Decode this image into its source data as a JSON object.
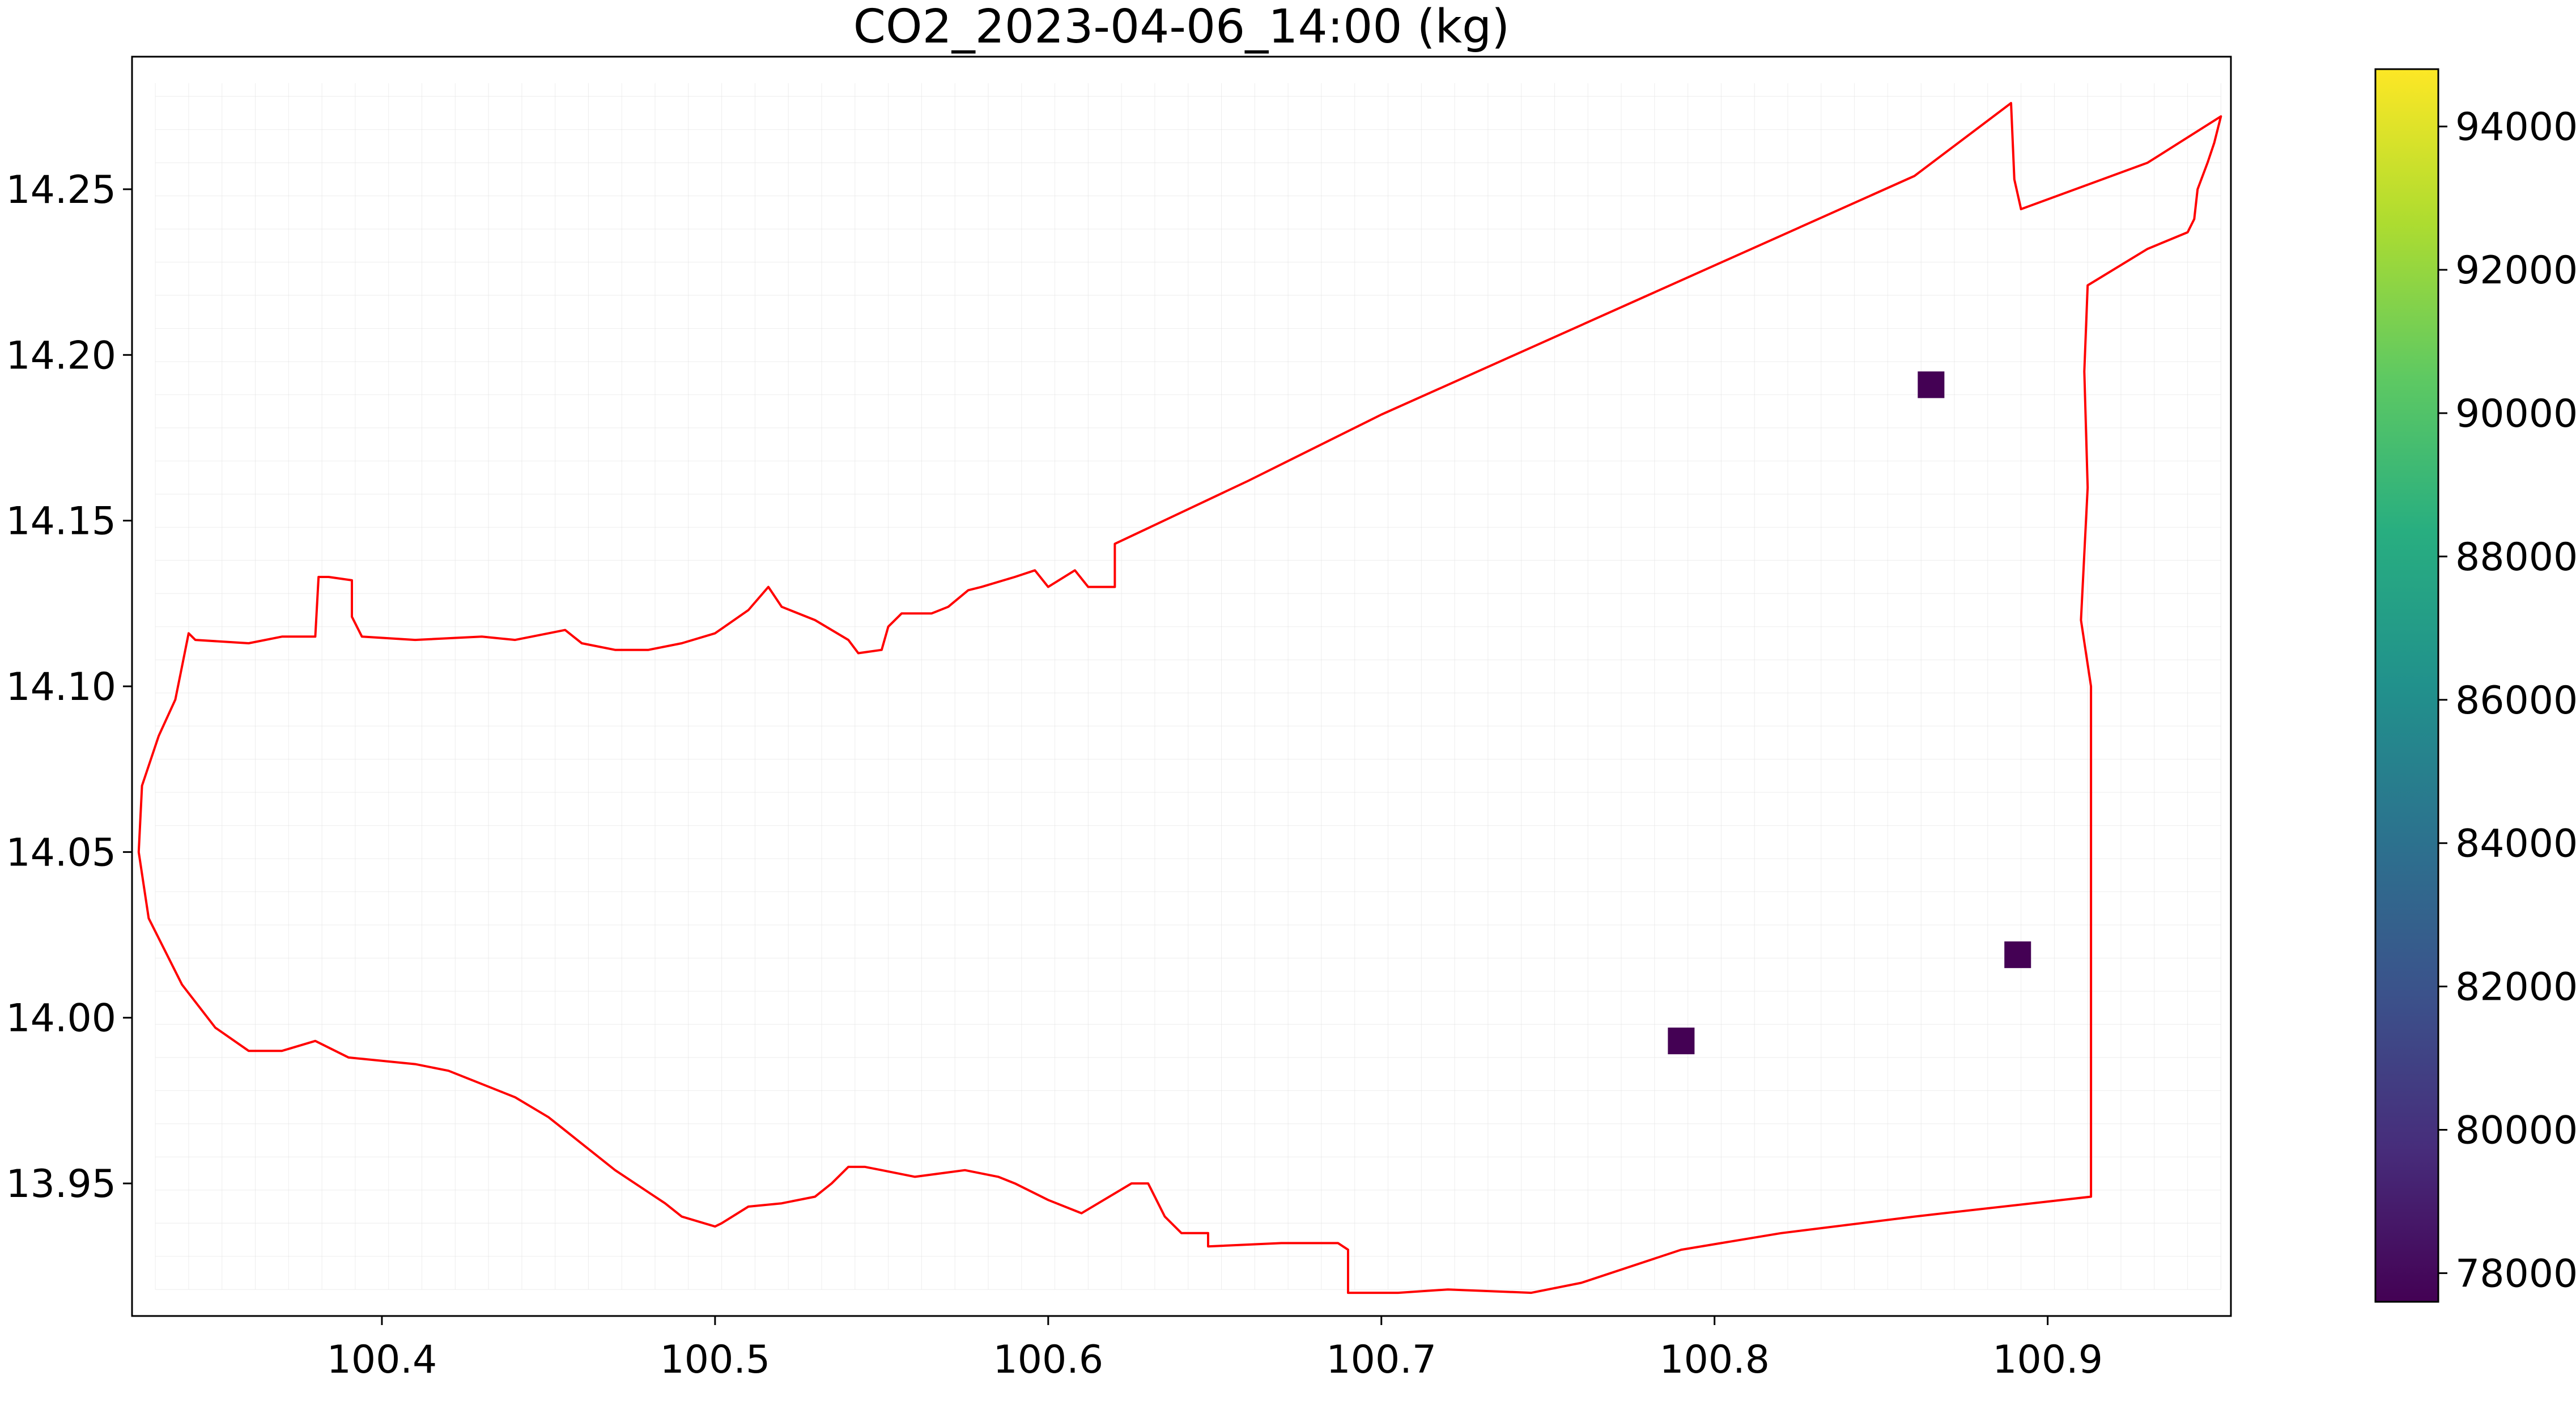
{
  "chart_data": {
    "type": "heatmap",
    "title": "CO2_2023-04-06_14:00 (kg)",
    "xlabel": "",
    "ylabel": "",
    "xlim": [
      100.325,
      100.955
    ],
    "ylim": [
      13.91,
      14.29
    ],
    "x_ticks": [
      {
        "value": 100.4,
        "label": "100.4"
      },
      {
        "value": 100.5,
        "label": "100.5"
      },
      {
        "value": 100.6,
        "label": "100.6"
      },
      {
        "value": 100.7,
        "label": "100.7"
      },
      {
        "value": 100.8,
        "label": "100.8"
      },
      {
        "value": 100.9,
        "label": "100.9"
      }
    ],
    "y_ticks": [
      {
        "value": 13.95,
        "label": "13.95"
      },
      {
        "value": 14.0,
        "label": "14.00"
      },
      {
        "value": 14.05,
        "label": "14.05"
      },
      {
        "value": 14.1,
        "label": "14.10"
      },
      {
        "value": 14.15,
        "label": "14.15"
      },
      {
        "value": 14.2,
        "label": "14.20"
      },
      {
        "value": 14.25,
        "label": "14.25"
      }
    ],
    "grid": true,
    "grid_extent": {
      "x": [
        100.332,
        100.952
      ],
      "y": [
        13.918,
        14.282
      ],
      "cell": 0.01
    },
    "cells": [
      {
        "x": 100.865,
        "y": 14.191,
        "value": 77600
      },
      {
        "x": 100.891,
        "y": 14.019,
        "value": 77600
      },
      {
        "x": 100.79,
        "y": 13.993,
        "value": 77600
      }
    ],
    "boundary": [
      [
        100.342,
        14.116
      ],
      [
        100.344,
        14.114
      ],
      [
        100.36,
        14.113
      ],
      [
        100.37,
        14.115
      ],
      [
        100.38,
        14.115
      ],
      [
        100.381,
        14.133
      ],
      [
        100.384,
        14.133
      ],
      [
        100.391,
        14.132
      ],
      [
        100.391,
        14.121
      ],
      [
        100.394,
        14.115
      ],
      [
        100.41,
        14.114
      ],
      [
        100.43,
        14.115
      ],
      [
        100.44,
        14.114
      ],
      [
        100.45,
        14.116
      ],
      [
        100.455,
        14.117
      ],
      [
        100.46,
        14.113
      ],
      [
        100.47,
        14.111
      ],
      [
        100.48,
        14.111
      ],
      [
        100.49,
        14.113
      ],
      [
        100.5,
        14.116
      ],
      [
        100.51,
        14.123
      ],
      [
        100.516,
        14.13
      ],
      [
        100.52,
        14.124
      ],
      [
        100.53,
        14.12
      ],
      [
        100.54,
        14.114
      ],
      [
        100.543,
        14.11
      ],
      [
        100.55,
        14.111
      ],
      [
        100.552,
        14.118
      ],
      [
        100.556,
        14.122
      ],
      [
        100.565,
        14.122
      ],
      [
        100.57,
        14.124
      ],
      [
        100.576,
        14.129
      ],
      [
        100.58,
        14.13
      ],
      [
        100.59,
        14.133
      ],
      [
        100.596,
        14.135
      ],
      [
        100.6,
        14.13
      ],
      [
        100.608,
        14.135
      ],
      [
        100.612,
        14.13
      ],
      [
        100.62,
        14.13
      ],
      [
        100.62,
        14.143
      ],
      [
        100.66,
        14.162
      ],
      [
        100.7,
        14.182
      ],
      [
        100.74,
        14.2
      ],
      [
        100.78,
        14.218
      ],
      [
        100.82,
        14.236
      ],
      [
        100.86,
        14.254
      ],
      [
        100.889,
        14.276
      ],
      [
        100.89,
        14.253
      ],
      [
        100.892,
        14.244
      ],
      [
        100.93,
        14.258
      ],
      [
        100.952,
        14.272
      ],
      [
        100.95,
        14.264
      ],
      [
        100.948,
        14.258
      ],
      [
        100.945,
        14.25
      ],
      [
        100.944,
        14.241
      ],
      [
        100.942,
        14.237
      ],
      [
        100.93,
        14.232
      ],
      [
        100.912,
        14.221
      ],
      [
        100.911,
        14.195
      ],
      [
        100.912,
        14.16
      ],
      [
        100.91,
        14.12
      ],
      [
        100.913,
        14.1
      ],
      [
        100.913,
        14.05
      ],
      [
        100.913,
        14.0
      ],
      [
        100.913,
        13.946
      ],
      [
        100.86,
        13.94
      ],
      [
        100.82,
        13.935
      ],
      [
        100.79,
        13.93
      ],
      [
        100.76,
        13.92
      ],
      [
        100.745,
        13.917
      ],
      [
        100.72,
        13.918
      ],
      [
        100.705,
        13.917
      ],
      [
        100.69,
        13.917
      ],
      [
        100.69,
        13.93
      ],
      [
        100.687,
        13.932
      ],
      [
        100.67,
        13.932
      ],
      [
        100.648,
        13.931
      ],
      [
        100.648,
        13.935
      ],
      [
        100.64,
        13.935
      ],
      [
        100.635,
        13.94
      ],
      [
        100.63,
        13.95
      ],
      [
        100.625,
        13.95
      ],
      [
        100.615,
        13.944
      ],
      [
        100.61,
        13.941
      ],
      [
        100.6,
        13.945
      ],
      [
        100.59,
        13.95
      ],
      [
        100.585,
        13.952
      ],
      [
        100.575,
        13.954
      ],
      [
        100.56,
        13.952
      ],
      [
        100.55,
        13.954
      ],
      [
        100.545,
        13.955
      ],
      [
        100.54,
        13.955
      ],
      [
        100.535,
        13.95
      ],
      [
        100.53,
        13.946
      ],
      [
        100.52,
        13.944
      ],
      [
        100.51,
        13.943
      ],
      [
        100.502,
        13.938
      ],
      [
        100.5,
        13.937
      ],
      [
        100.49,
        13.94
      ],
      [
        100.485,
        13.944
      ],
      [
        100.47,
        13.954
      ],
      [
        100.46,
        13.962
      ],
      [
        100.455,
        13.966
      ],
      [
        100.45,
        13.97
      ],
      [
        100.44,
        13.976
      ],
      [
        100.43,
        13.98
      ],
      [
        100.42,
        13.984
      ],
      [
        100.41,
        13.986
      ],
      [
        100.39,
        13.988
      ],
      [
        100.38,
        13.993
      ],
      [
        100.37,
        13.99
      ],
      [
        100.36,
        13.99
      ],
      [
        100.35,
        13.997
      ],
      [
        100.34,
        14.01
      ],
      [
        100.33,
        14.03
      ],
      [
        100.327,
        14.05
      ],
      [
        100.328,
        14.07
      ],
      [
        100.333,
        14.085
      ],
      [
        100.338,
        14.096
      ],
      [
        100.34,
        14.106
      ],
      [
        100.342,
        14.116
      ]
    ],
    "colorbar": {
      "colormap": "viridis",
      "min": 77600,
      "max": 94800,
      "ticks": [
        78000,
        80000,
        82000,
        84000,
        86000,
        88000,
        90000,
        92000,
        94000
      ]
    },
    "colors": {
      "boundary": "#ff0000",
      "grid": "#dddddd",
      "axes": "#000000"
    }
  }
}
